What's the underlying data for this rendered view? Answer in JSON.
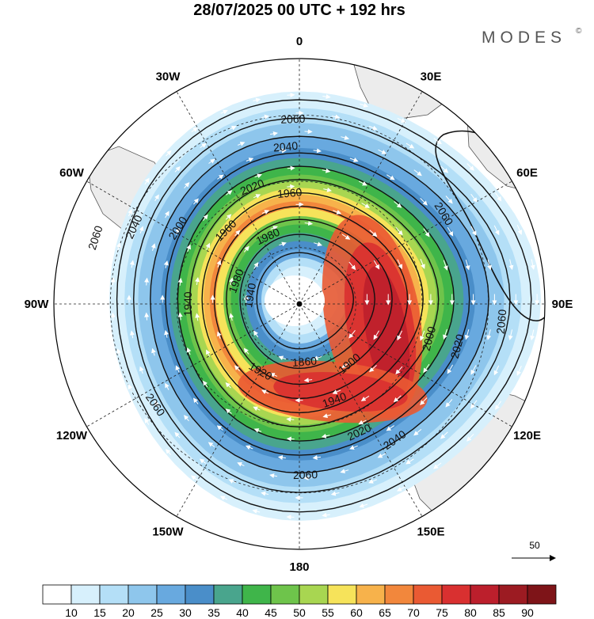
{
  "title": "28/07/2025  00 UTC  + 192 hrs",
  "brand": "MODES",
  "brand_mark": "©",
  "longitude_labels": [
    {
      "text": "0",
      "lon": 0
    },
    {
      "text": "30E",
      "lon": 30
    },
    {
      "text": "60E",
      "lon": 60
    },
    {
      "text": "90E",
      "lon": 90
    },
    {
      "text": "120E",
      "lon": 120
    },
    {
      "text": "150E",
      "lon": 150
    },
    {
      "text": "180",
      "lon": 180
    },
    {
      "text": "150W",
      "lon": -150
    },
    {
      "text": "120W",
      "lon": -120
    },
    {
      "text": "90W",
      "lon": -90
    },
    {
      "text": "60W",
      "lon": -60
    },
    {
      "text": "30W",
      "lon": -30
    }
  ],
  "colorbar": {
    "ticks": [
      "10",
      "15",
      "20",
      "25",
      "30",
      "35",
      "40",
      "45",
      "50",
      "55",
      "60",
      "65",
      "70",
      "75",
      "80",
      "85",
      "90"
    ],
    "colors": [
      "#ffffff",
      "#d7f0fc",
      "#b4dff7",
      "#8ec6ec",
      "#68a9df",
      "#4a8ec9",
      "#49a58d",
      "#3fb54a",
      "#6ec44b",
      "#a8d651",
      "#f6e35a",
      "#f7b24b",
      "#f2873c",
      "#ea5a33",
      "#d93030",
      "#bc1f2c",
      "#9c1b22",
      "#7e1418"
    ]
  },
  "contour_labels": [
    {
      "text": "2060",
      "angle": -2,
      "rad": 0.75
    },
    {
      "text": "2040",
      "angle": -5,
      "rad": 0.64
    },
    {
      "text": "2020",
      "angle": -22,
      "rad": 0.51
    },
    {
      "text": "1960",
      "angle": -5,
      "rad": 0.45
    },
    {
      "text": "1960",
      "angle": -45,
      "rad": 0.42
    },
    {
      "text": "1980",
      "angle": -25,
      "rad": 0.3
    },
    {
      "text": "1980",
      "angle": -70,
      "rad": 0.27
    },
    {
      "text": "2000",
      "angle": -58,
      "rad": 0.58
    },
    {
      "text": "1940",
      "angle": -90,
      "rad": 0.45
    },
    {
      "text": "1940",
      "angle": -80,
      "rad": 0.2
    },
    {
      "text": "2040",
      "angle": -65,
      "rad": 0.74
    },
    {
      "text": "2060",
      "angle": -72,
      "rad": 0.87
    },
    {
      "text": "2060",
      "angle": -125,
      "rad": 0.72
    },
    {
      "text": "1920",
      "angle": -150,
      "rad": 0.32
    },
    {
      "text": "1860",
      "angle": 175,
      "rad": 0.24
    },
    {
      "text": "1900",
      "angle": 140,
      "rad": 0.32
    },
    {
      "text": "1940",
      "angle": 160,
      "rad": 0.42
    },
    {
      "text": "2020",
      "angle": 155,
      "rad": 0.58
    },
    {
      "text": "2040",
      "angle": 145,
      "rad": 0.68
    },
    {
      "text": "2060",
      "angle": 178,
      "rad": 0.7
    },
    {
      "text": "2000",
      "angle": 105,
      "rad": 0.55
    },
    {
      "text": "2020",
      "angle": 105,
      "rad": 0.67
    },
    {
      "text": "2060",
      "angle": 95,
      "rad": 0.83
    },
    {
      "text": "2060",
      "angle": 58,
      "rad": 0.69
    }
  ],
  "reference_vector": {
    "label": "50"
  }
}
